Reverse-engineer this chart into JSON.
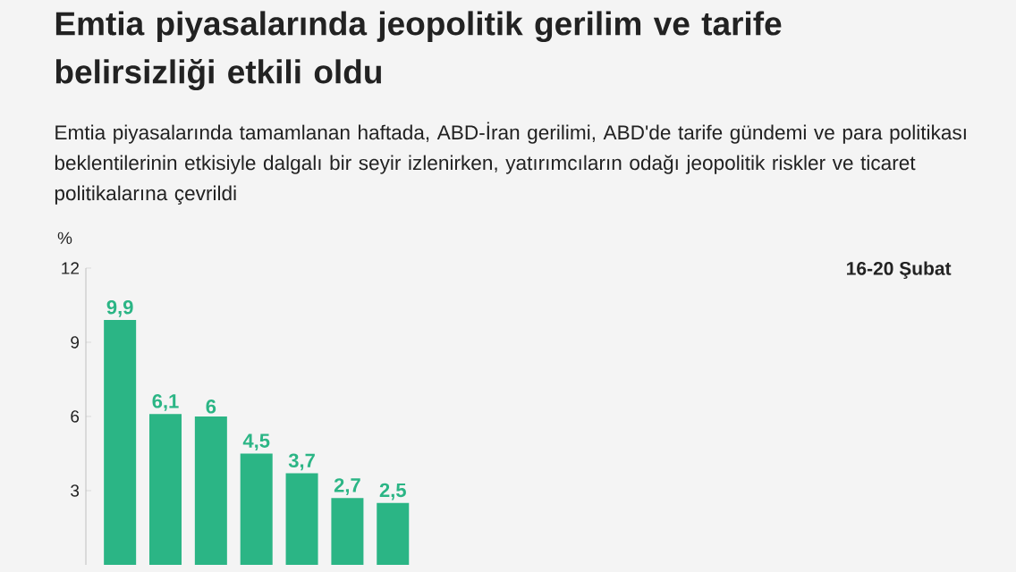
{
  "chart_data": {
    "type": "bar",
    "title": "Emtia piyasalarında jeopolitik gerilim ve tarife belirsizliği etkili oldu",
    "subtitle": "Emtia piyasalarında tamamlanan haftada, ABD-İran gerilimi, ABD'de tarife gündemi ve para politikası beklentilerinin etkisiyle dalgalı bir seyir izlenirken, yatırımcıların odağı jeopolitik riskler ve ticaret politikalarına çevrildi",
    "ylabel": "%",
    "annotations": [
      "16-20 Şubat"
    ],
    "categories": [
      null,
      null,
      null,
      null,
      null,
      null,
      null
    ],
    "values": [
      9.9,
      6.1,
      6,
      4.5,
      3.7,
      2.7,
      2.5
    ],
    "value_labels": [
      "9,9",
      "6,1",
      "6",
      "4,5",
      "3,7",
      "2,7",
      "2,5"
    ],
    "color": "#2bb585",
    "ylim": [
      0,
      12
    ],
    "yticks": [
      3,
      6,
      9,
      12
    ]
  }
}
